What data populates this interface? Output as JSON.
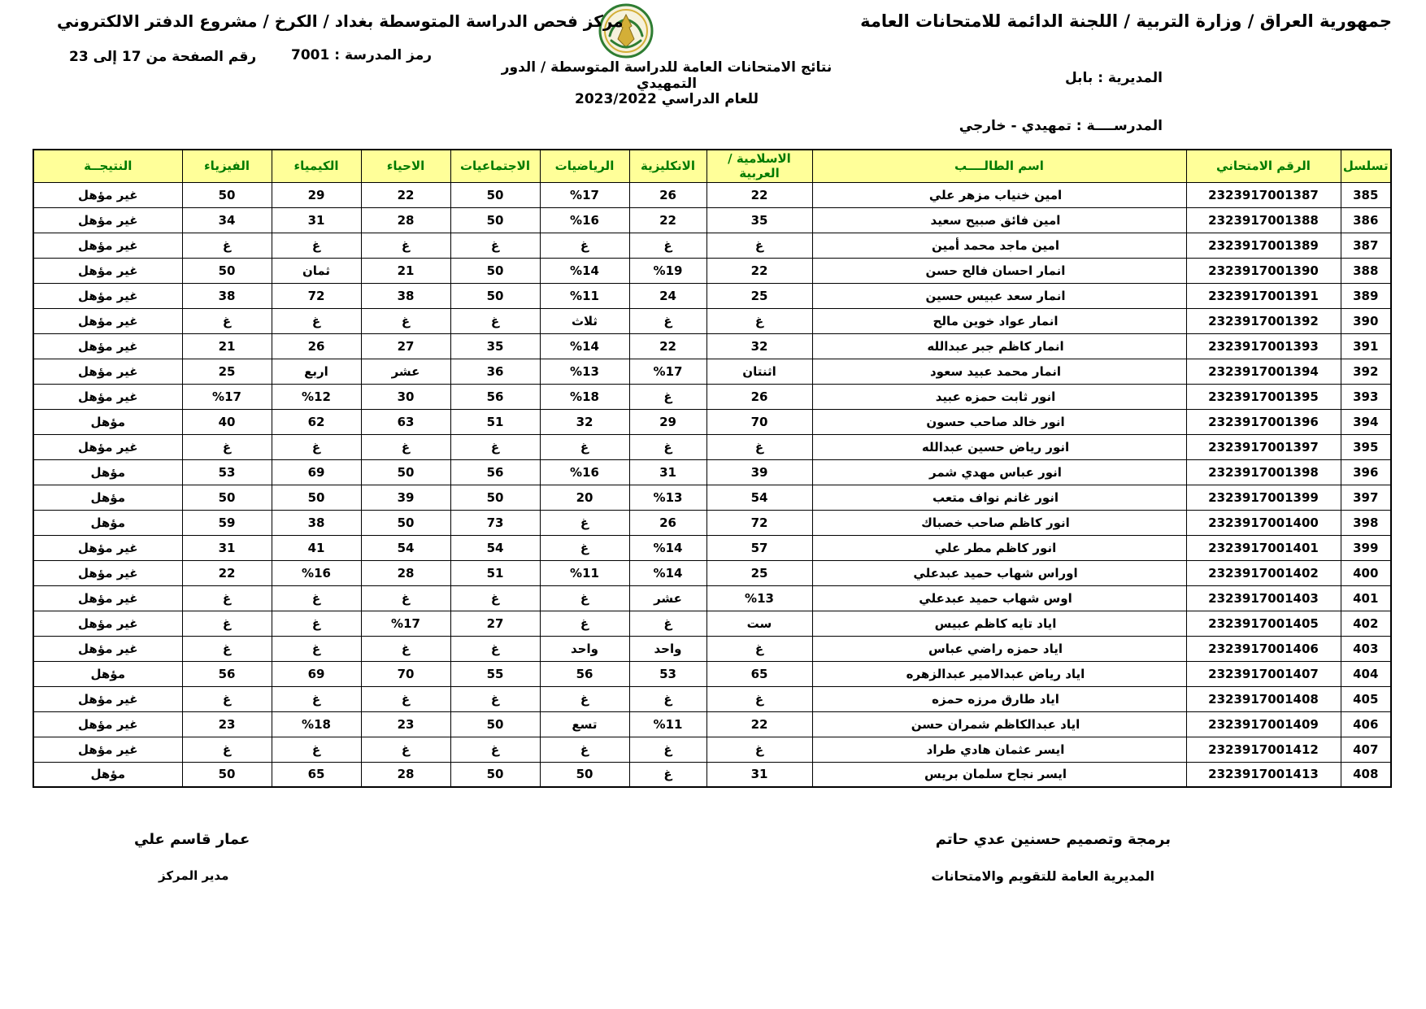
{
  "header": {
    "org_line": "جمهورية العراق / وزارة التربية / اللجنة الدائمة للامتحانات العامة",
    "center_line": "مركز فحص الدراسة المتوسطة بغداد / الكرخ / مشروع الدفتر الالكتروني",
    "page_range": "رقم الصفحة من  17 إلى 23",
    "school_code_line": "رمز المدرسة :  7001",
    "results_title": "نتائج الامتحانات العامة للدراسة المتوسطة / الدور التمهيدي",
    "year_line": "للعام الدراسي    2023/2022",
    "directorate_line": "المديرية :   بابل",
    "school_line": "المدرســــة :   تمهيدي - خارجي"
  },
  "colors": {
    "fail_bg": "#FFFF99",
    "fail_text": "#FF0000",
    "header_text": "#007A00",
    "emblem_green": "#2e7d32",
    "emblem_gold": "#d4af37"
  },
  "table": {
    "columns": [
      "تسلسل",
      "الرقم الامتحاني",
      "اسم الطالــــب",
      "الاسلامية / العربية",
      "الانكليزية",
      "الرياضيات",
      "الاجتماعيات",
      "الاحياء",
      "الكيمياء",
      "الفيزياء",
      "النتيجــة"
    ],
    "rows": [
      {
        "serial": "385",
        "exam_no": "2323917001387",
        "name": "امين خنياب مزهر علي",
        "scores": [
          {
            "v": "22",
            "fail": true
          },
          {
            "v": "26",
            "fail": true
          },
          {
            "v": "%17",
            "fail": true
          },
          {
            "v": "50",
            "fail": false
          },
          {
            "v": "22",
            "fail": true
          },
          {
            "v": "29",
            "fail": true
          },
          {
            "v": "50",
            "fail": false
          }
        ],
        "result": {
          "v": "غير مؤهل",
          "fail": true
        }
      },
      {
        "serial": "386",
        "exam_no": "2323917001388",
        "name": "امين فائق صبيح سعيد",
        "scores": [
          {
            "v": "35",
            "fail": true
          },
          {
            "v": "22",
            "fail": true
          },
          {
            "v": "%16",
            "fail": true
          },
          {
            "v": "50",
            "fail": false
          },
          {
            "v": "28",
            "fail": true
          },
          {
            "v": "31",
            "fail": true
          },
          {
            "v": "34",
            "fail": false
          }
        ],
        "result": {
          "v": "غير مؤهل",
          "fail": true
        }
      },
      {
        "serial": "387",
        "exam_no": "2323917001389",
        "name": "امين ماجد محمد أمين",
        "scores": [
          {
            "v": "غ",
            "fail": true
          },
          {
            "v": "غ",
            "fail": true
          },
          {
            "v": "غ",
            "fail": true
          },
          {
            "v": "غ",
            "fail": true
          },
          {
            "v": "غ",
            "fail": true
          },
          {
            "v": "غ",
            "fail": true
          },
          {
            "v": "غ",
            "fail": true
          }
        ],
        "result": {
          "v": "غير مؤهل",
          "fail": true
        }
      },
      {
        "serial": "388",
        "exam_no": "2323917001390",
        "name": "انمار احسان فالح حسن",
        "scores": [
          {
            "v": "22",
            "fail": true
          },
          {
            "v": "%19",
            "fail": true
          },
          {
            "v": "%14",
            "fail": true
          },
          {
            "v": "50",
            "fail": false
          },
          {
            "v": "21",
            "fail": true
          },
          {
            "v": "ثمان",
            "fail": true
          },
          {
            "v": "50",
            "fail": false
          }
        ],
        "result": {
          "v": "غير مؤهل",
          "fail": true
        }
      },
      {
        "serial": "389",
        "exam_no": "2323917001391",
        "name": "انمار سعد عبيس حسين",
        "scores": [
          {
            "v": "25",
            "fail": true
          },
          {
            "v": "24",
            "fail": true
          },
          {
            "v": "%11",
            "fail": true
          },
          {
            "v": "50",
            "fail": false
          },
          {
            "v": "38",
            "fail": true
          },
          {
            "v": "72",
            "fail": false
          },
          {
            "v": "38",
            "fail": true
          }
        ],
        "result": {
          "v": "غير مؤهل",
          "fail": true
        }
      },
      {
        "serial": "390",
        "exam_no": "2323917001392",
        "name": "انمار عواد خوين مالح",
        "scores": [
          {
            "v": "غ",
            "fail": true
          },
          {
            "v": "غ",
            "fail": true
          },
          {
            "v": "ثلاث",
            "fail": true
          },
          {
            "v": "غ",
            "fail": true
          },
          {
            "v": "غ",
            "fail": true
          },
          {
            "v": "غ",
            "fail": true
          },
          {
            "v": "غ",
            "fail": true
          }
        ],
        "result": {
          "v": "غير مؤهل",
          "fail": true
        }
      },
      {
        "serial": "391",
        "exam_no": "2323917001393",
        "name": "انمار كاظم جبر عبدالله",
        "scores": [
          {
            "v": "32",
            "fail": true
          },
          {
            "v": "22",
            "fail": true
          },
          {
            "v": "%14",
            "fail": true
          },
          {
            "v": "35",
            "fail": true
          },
          {
            "v": "27",
            "fail": true
          },
          {
            "v": "26",
            "fail": true
          },
          {
            "v": "21",
            "fail": true
          }
        ],
        "result": {
          "v": "غير مؤهل",
          "fail": true
        }
      },
      {
        "serial": "392",
        "exam_no": "2323917001394",
        "name": "انمار محمد عبيد سعود",
        "scores": [
          {
            "v": "اثنتان",
            "fail": true
          },
          {
            "v": "%17",
            "fail": true
          },
          {
            "v": "%13",
            "fail": true
          },
          {
            "v": "36",
            "fail": true
          },
          {
            "v": "عشر",
            "fail": true
          },
          {
            "v": "اربع",
            "fail": true
          },
          {
            "v": "25",
            "fail": true
          }
        ],
        "result": {
          "v": "غير مؤهل",
          "fail": true
        }
      },
      {
        "serial": "393",
        "exam_no": "2323917001395",
        "name": "انور ثابت حمزه عبيد",
        "scores": [
          {
            "v": "26",
            "fail": true
          },
          {
            "v": "غ",
            "fail": true
          },
          {
            "v": "%18",
            "fail": true
          },
          {
            "v": "56",
            "fail": false
          },
          {
            "v": "30",
            "fail": true
          },
          {
            "v": "%12",
            "fail": true
          },
          {
            "v": "%17",
            "fail": true
          }
        ],
        "result": {
          "v": "غير مؤهل",
          "fail": true
        }
      },
      {
        "serial": "394",
        "exam_no": "2323917001396",
        "name": "انور خالد صاحب حسون",
        "scores": [
          {
            "v": "70",
            "fail": false
          },
          {
            "v": "29",
            "fail": true
          },
          {
            "v": "32",
            "fail": true
          },
          {
            "v": "51",
            "fail": false
          },
          {
            "v": "63",
            "fail": false
          },
          {
            "v": "62",
            "fail": false
          },
          {
            "v": "40",
            "fail": true
          }
        ],
        "result": {
          "v": "مؤهل",
          "fail": false
        }
      },
      {
        "serial": "395",
        "exam_no": "2323917001397",
        "name": "انور رياض حسين عبدالله",
        "scores": [
          {
            "v": "غ",
            "fail": true
          },
          {
            "v": "غ",
            "fail": true
          },
          {
            "v": "غ",
            "fail": true
          },
          {
            "v": "غ",
            "fail": true
          },
          {
            "v": "غ",
            "fail": true
          },
          {
            "v": "غ",
            "fail": true
          },
          {
            "v": "غ",
            "fail": true
          }
        ],
        "result": {
          "v": "غير مؤهل",
          "fail": true
        }
      },
      {
        "serial": "396",
        "exam_no": "2323917001398",
        "name": "انور عباس مهدي شمر",
        "scores": [
          {
            "v": "39",
            "fail": true
          },
          {
            "v": "31",
            "fail": true
          },
          {
            "v": "%16",
            "fail": true
          },
          {
            "v": "56",
            "fail": false
          },
          {
            "v": "50",
            "fail": false
          },
          {
            "v": "69",
            "fail": false
          },
          {
            "v": "53",
            "fail": false
          }
        ],
        "result": {
          "v": "مؤهل",
          "fail": false
        }
      },
      {
        "serial": "397",
        "exam_no": "2323917001399",
        "name": "انور غانم نواف متعب",
        "scores": [
          {
            "v": "54",
            "fail": false
          },
          {
            "v": "%13",
            "fail": true
          },
          {
            "v": "20",
            "fail": true
          },
          {
            "v": "50",
            "fail": false
          },
          {
            "v": "39",
            "fail": true
          },
          {
            "v": "50",
            "fail": false
          },
          {
            "v": "50",
            "fail": false
          }
        ],
        "result": {
          "v": "مؤهل",
          "fail": false
        }
      },
      {
        "serial": "398",
        "exam_no": "2323917001400",
        "name": "انور كاظم صاحب خصباك",
        "scores": [
          {
            "v": "72",
            "fail": false
          },
          {
            "v": "26",
            "fail": true
          },
          {
            "v": "غ",
            "fail": true
          },
          {
            "v": "73",
            "fail": false
          },
          {
            "v": "50",
            "fail": false
          },
          {
            "v": "38",
            "fail": true
          },
          {
            "v": "59",
            "fail": false
          }
        ],
        "result": {
          "v": "مؤهل",
          "fail": false
        }
      },
      {
        "serial": "399",
        "exam_no": "2323917001401",
        "name": "انور كاظم مطر علي",
        "scores": [
          {
            "v": "57",
            "fail": false
          },
          {
            "v": "%14",
            "fail": true
          },
          {
            "v": "غ",
            "fail": true
          },
          {
            "v": "54",
            "fail": false
          },
          {
            "v": "54",
            "fail": false
          },
          {
            "v": "41",
            "fail": true
          },
          {
            "v": "31",
            "fail": true
          }
        ],
        "result": {
          "v": "غير مؤهل",
          "fail": true
        }
      },
      {
        "serial": "400",
        "exam_no": "2323917001402",
        "name": "اوراس شهاب حميد عبدعلي",
        "scores": [
          {
            "v": "25",
            "fail": true
          },
          {
            "v": "%14",
            "fail": true
          },
          {
            "v": "%11",
            "fail": true
          },
          {
            "v": "51",
            "fail": false
          },
          {
            "v": "28",
            "fail": true
          },
          {
            "v": "%16",
            "fail": true
          },
          {
            "v": "22",
            "fail": true
          }
        ],
        "result": {
          "v": "غير مؤهل",
          "fail": true
        }
      },
      {
        "serial": "401",
        "exam_no": "2323917001403",
        "name": "اوس شهاب حميد عبدعلي",
        "scores": [
          {
            "v": "%13",
            "fail": true
          },
          {
            "v": "عشر",
            "fail": true
          },
          {
            "v": "غ",
            "fail": true
          },
          {
            "v": "غ",
            "fail": true
          },
          {
            "v": "غ",
            "fail": true
          },
          {
            "v": "غ",
            "fail": true
          },
          {
            "v": "غ",
            "fail": true
          }
        ],
        "result": {
          "v": "غير مؤهل",
          "fail": true
        }
      },
      {
        "serial": "402",
        "exam_no": "2323917001405",
        "name": "اياد تايه كاظم عبيس",
        "scores": [
          {
            "v": "ست",
            "fail": true
          },
          {
            "v": "غ",
            "fail": true
          },
          {
            "v": "غ",
            "fail": true
          },
          {
            "v": "27",
            "fail": true
          },
          {
            "v": "%17",
            "fail": true
          },
          {
            "v": "غ",
            "fail": true
          },
          {
            "v": "غ",
            "fail": true
          }
        ],
        "result": {
          "v": "غير مؤهل",
          "fail": true
        }
      },
      {
        "serial": "403",
        "exam_no": "2323917001406",
        "name": "اياد حمزه راضي عباس",
        "scores": [
          {
            "v": "غ",
            "fail": true
          },
          {
            "v": "واحد",
            "fail": true
          },
          {
            "v": "واحد",
            "fail": true
          },
          {
            "v": "غ",
            "fail": true
          },
          {
            "v": "غ",
            "fail": true
          },
          {
            "v": "غ",
            "fail": true
          },
          {
            "v": "غ",
            "fail": true
          }
        ],
        "result": {
          "v": "غير مؤهل",
          "fail": true
        }
      },
      {
        "serial": "404",
        "exam_no": "2323917001407",
        "name": "اياد رياض عبدالامير عبدالزهره",
        "scores": [
          {
            "v": "65",
            "fail": false
          },
          {
            "v": "53",
            "fail": false
          },
          {
            "v": "56",
            "fail": false
          },
          {
            "v": "55",
            "fail": false
          },
          {
            "v": "70",
            "fail": false
          },
          {
            "v": "69",
            "fail": false
          },
          {
            "v": "56",
            "fail": false
          }
        ],
        "result": {
          "v": "مؤهل",
          "fail": false
        }
      },
      {
        "serial": "405",
        "exam_no": "2323917001408",
        "name": "اياد طارق مرزه حمزه",
        "scores": [
          {
            "v": "غ",
            "fail": true
          },
          {
            "v": "غ",
            "fail": true
          },
          {
            "v": "غ",
            "fail": true
          },
          {
            "v": "غ",
            "fail": true
          },
          {
            "v": "غ",
            "fail": true
          },
          {
            "v": "غ",
            "fail": true
          },
          {
            "v": "غ",
            "fail": true
          }
        ],
        "result": {
          "v": "غير مؤهل",
          "fail": true
        }
      },
      {
        "serial": "406",
        "exam_no": "2323917001409",
        "name": "اياد عبدالكاظم شمران حسن",
        "scores": [
          {
            "v": "22",
            "fail": true
          },
          {
            "v": "%11",
            "fail": true
          },
          {
            "v": "تسع",
            "fail": true
          },
          {
            "v": "50",
            "fail": false
          },
          {
            "v": "23",
            "fail": true
          },
          {
            "v": "%18",
            "fail": true
          },
          {
            "v": "23",
            "fail": true
          }
        ],
        "result": {
          "v": "غير مؤهل",
          "fail": true
        }
      },
      {
        "serial": "407",
        "exam_no": "2323917001412",
        "name": "ايسر عثمان هادي طراد",
        "scores": [
          {
            "v": "غ",
            "fail": true
          },
          {
            "v": "غ",
            "fail": true
          },
          {
            "v": "غ",
            "fail": true
          },
          {
            "v": "غ",
            "fail": true
          },
          {
            "v": "غ",
            "fail": true
          },
          {
            "v": "غ",
            "fail": true
          },
          {
            "v": "غ",
            "fail": true
          }
        ],
        "result": {
          "v": "غير مؤهل",
          "fail": true
        }
      },
      {
        "serial": "408",
        "exam_no": "2323917001413",
        "name": "ايسر نجاح سلمان بريس",
        "scores": [
          {
            "v": "31",
            "fail": true
          },
          {
            "v": "غ",
            "fail": true
          },
          {
            "v": "50",
            "fail": false
          },
          {
            "v": "50",
            "fail": false
          },
          {
            "v": "28",
            "fail": true
          },
          {
            "v": "65",
            "fail": false
          },
          {
            "v": "50",
            "fail": false
          }
        ],
        "result": {
          "v": "مؤهل",
          "fail": false
        }
      }
    ]
  },
  "footer": {
    "programmer_line": "برمجة وتصميم حسنين عدي حاتم",
    "directorate_line": "المديرية العامة للتقويم والامتحانات",
    "manager_name": "عمار قاسم علي",
    "manager_title": "مدير المركز"
  }
}
